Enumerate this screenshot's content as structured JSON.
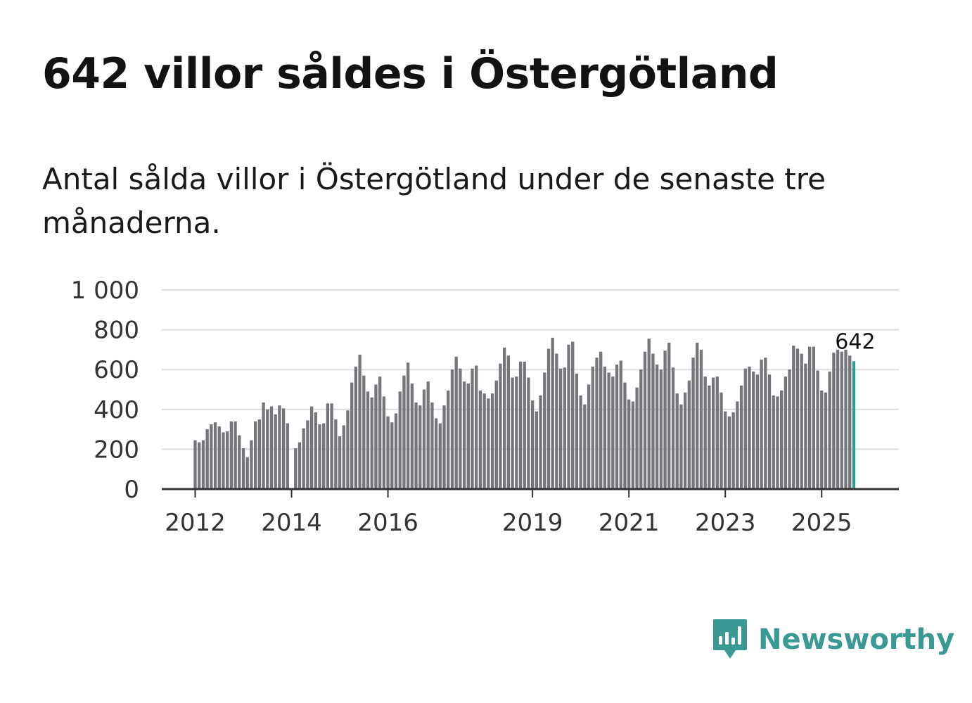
{
  "header": {
    "title": "642 villor såldes i Östergötland",
    "subtitle": "Antal sålda villor i Östergötland under de senaste tre månaderna."
  },
  "brand": {
    "name": "Newsworthy",
    "color": "#3a9a93"
  },
  "colors": {
    "bar": "#75757c",
    "highlight": "#2a9d8f",
    "grid": "#dddddd",
    "axis": "#333333"
  },
  "chart_data": {
    "type": "bar",
    "title": "Antal sålda villor",
    "xlabel": "",
    "ylabel": "",
    "ylim": [
      0,
      1000
    ],
    "y_ticks": [
      {
        "value": 0,
        "label": "0"
      },
      {
        "value": 200,
        "label": "200"
      },
      {
        "value": 400,
        "label": "400"
      },
      {
        "value": 600,
        "label": "600"
      },
      {
        "value": 800,
        "label": "800"
      },
      {
        "value": 1000,
        "label": "1 000"
      }
    ],
    "x_ticks": [
      {
        "index": 0,
        "label": "2012"
      },
      {
        "index": 24,
        "label": "2014"
      },
      {
        "index": 48,
        "label": "2016"
      },
      {
        "index": 84,
        "label": "2019"
      },
      {
        "index": 108,
        "label": "2021"
      },
      {
        "index": 132,
        "label": "2023"
      },
      {
        "index": 156,
        "label": "2025"
      }
    ],
    "start": "2012-01",
    "values": [
      245,
      235,
      245,
      300,
      325,
      335,
      315,
      285,
      290,
      340,
      340,
      270,
      205,
      160,
      245,
      340,
      350,
      435,
      400,
      415,
      375,
      420,
      405,
      330,
      0,
      205,
      235,
      305,
      345,
      415,
      385,
      325,
      330,
      430,
      430,
      350,
      265,
      320,
      395,
      535,
      615,
      675,
      570,
      490,
      460,
      525,
      565,
      465,
      365,
      335,
      380,
      490,
      570,
      635,
      530,
      435,
      420,
      500,
      540,
      435,
      355,
      330,
      420,
      495,
      600,
      665,
      605,
      540,
      530,
      605,
      620,
      495,
      480,
      455,
      480,
      545,
      630,
      710,
      670,
      560,
      565,
      640,
      640,
      560,
      445,
      390,
      470,
      585,
      705,
      760,
      680,
      605,
      610,
      725,
      740,
      580,
      470,
      425,
      525,
      615,
      660,
      690,
      615,
      585,
      565,
      625,
      645,
      535,
      450,
      440,
      510,
      600,
      690,
      755,
      680,
      625,
      600,
      695,
      735,
      610,
      480,
      425,
      485,
      545,
      660,
      735,
      700,
      565,
      520,
      560,
      565,
      485,
      390,
      365,
      385,
      440,
      520,
      605,
      615,
      590,
      575,
      650,
      660,
      575,
      470,
      465,
      495,
      565,
      600,
      720,
      705,
      680,
      630,
      715,
      715,
      595,
      495,
      485,
      590,
      685,
      700,
      690,
      700,
      670,
      642
    ],
    "highlight_index": 164,
    "highlight_label": "642",
    "legend": "none",
    "grid": true
  }
}
